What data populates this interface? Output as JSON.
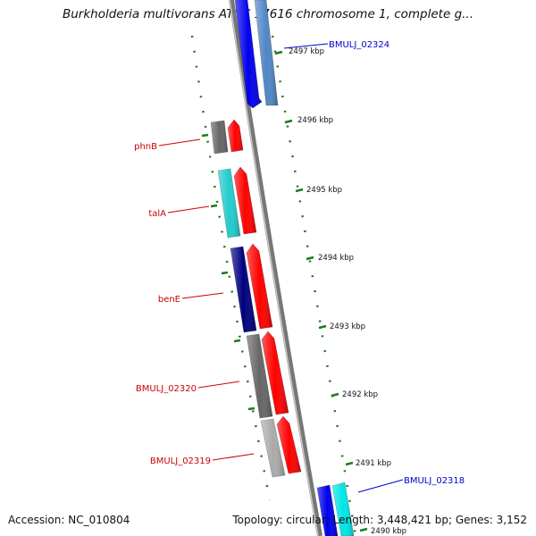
{
  "title": "Burkholderia multivorans ATCC 17616 chromosome 1, complete g...",
  "footer": {
    "accession": "Accession: NC_010804",
    "stats": "Topology: circular; Length: 3,448,421 bp; Genes: 3,152"
  },
  "colors": {
    "forward_red": "#ff0000",
    "backbone_gray": "#888888",
    "tick_green": "#1f7a1f",
    "label_red": "#cc0000",
    "label_blue": "#0000cc"
  },
  "kbp_ticks": [
    "2497 kbp",
    "2496 kbp",
    "2495 kbp",
    "2494 kbp",
    "2493 kbp",
    "2492 kbp",
    "2491 kbp",
    "2490 kbp"
  ],
  "gene_labels": [
    {
      "text": "BMULJ_02324",
      "color": "blue"
    },
    {
      "text": "phnB",
      "color": "red"
    },
    {
      "text": "talA",
      "color": "red"
    },
    {
      "text": "benE",
      "color": "red"
    },
    {
      "text": "BMULJ_02320",
      "color": "red"
    },
    {
      "text": "BMULJ_02319",
      "color": "red"
    },
    {
      "text": "BMULJ_02318",
      "color": "blue"
    }
  ],
  "genes": [
    {
      "strand": "reverse",
      "color": "#0000ee"
    },
    {
      "strand": "reverse",
      "color": "#4f86c6"
    },
    {
      "strand": "reverse",
      "color": "#666666"
    },
    {
      "strand": "forward",
      "color": "#ff0000"
    },
    {
      "strand": "reverse",
      "color": "#22cccc"
    },
    {
      "strand": "forward",
      "color": "#ff0000"
    },
    {
      "strand": "reverse",
      "color": "#000080"
    },
    {
      "strand": "forward",
      "color": "#ff0000"
    },
    {
      "strand": "reverse",
      "color": "#666666"
    },
    {
      "strand": "forward",
      "color": "#ff0000"
    },
    {
      "strand": "reverse",
      "color": "#aaaaaa"
    },
    {
      "strand": "forward",
      "color": "#ff0000"
    },
    {
      "strand": "reverse",
      "color": "#0000ee"
    },
    {
      "strand": "reverse",
      "color": "#00e5e5"
    }
  ]
}
